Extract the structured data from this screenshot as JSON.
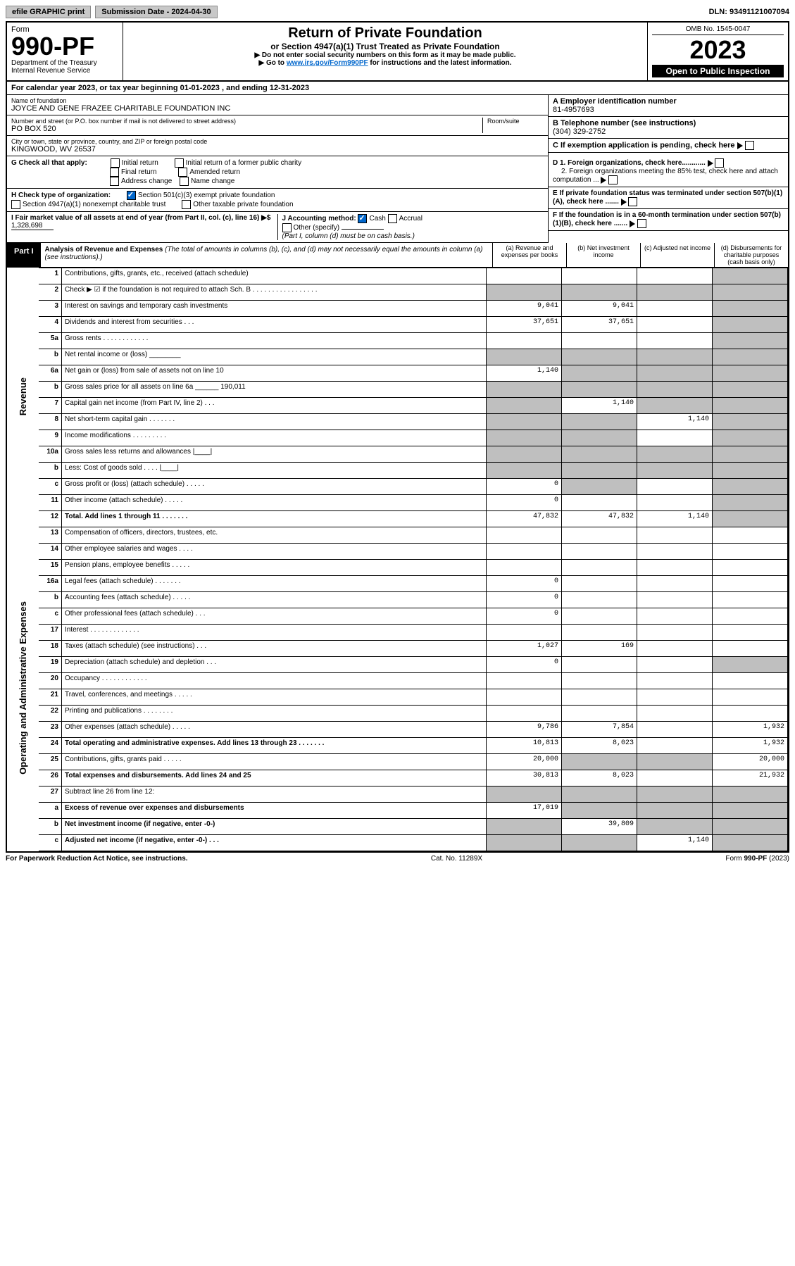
{
  "topbar": {
    "efile": "efile GRAPHIC print",
    "submission_label": "Submission Date - 2024-04-30",
    "dln": "DLN: 93491121007094"
  },
  "header": {
    "form_word": "Form",
    "form_number": "990-PF",
    "dept": "Department of the Treasury",
    "irs": "Internal Revenue Service",
    "title": "Return of Private Foundation",
    "subtitle": "or Section 4947(a)(1) Trust Treated as Private Foundation",
    "instr1": "▶ Do not enter social security numbers on this form as it may be made public.",
    "instr2_pre": "▶ Go to ",
    "instr2_link": "www.irs.gov/Form990PF",
    "instr2_post": " for instructions and the latest information.",
    "omb": "OMB No. 1545-0047",
    "year": "2023",
    "open": "Open to Public Inspection"
  },
  "calendar": {
    "text_pre": "For calendar year 2023, or tax year beginning ",
    "begin": "01-01-2023",
    "text_mid": " , and ending ",
    "end": "12-31-2023"
  },
  "entity": {
    "name_label": "Name of foundation",
    "name": "JOYCE AND GENE FRAZEE CHARITABLE FOUNDATION INC",
    "addr_label": "Number and street (or P.O. box number if mail is not delivered to street address)",
    "room_label": "Room/suite",
    "addr": "PO BOX 520",
    "city_label": "City or town, state or province, country, and ZIP or foreign postal code",
    "city": "KINGWOOD, WV  26537",
    "ein_label": "A Employer identification number",
    "ein": "81-4957693",
    "phone_label": "B Telephone number (see instructions)",
    "phone": "(304) 329-2752",
    "c_label": "C If exemption application is pending, check here"
  },
  "checks": {
    "g_label": "G Check all that apply:",
    "g_opts": [
      "Initial return",
      "Initial return of a former public charity",
      "Final return",
      "Amended return",
      "Address change",
      "Name change"
    ],
    "h_label": "H Check type of organization:",
    "h1": "Section 501(c)(3) exempt private foundation",
    "h2": "Section 4947(a)(1) nonexempt charitable trust",
    "h3": "Other taxable private foundation",
    "i_label": "I Fair market value of all assets at end of year (from Part II, col. (c), line 16) ▶$ ",
    "i_val": "1,328,698",
    "j_label": "J Accounting method:",
    "j_cash": "Cash",
    "j_accrual": "Accrual",
    "j_other": "Other (specify)",
    "j_note": "(Part I, column (d) must be on cash basis.)",
    "d1": "D 1. Foreign organizations, check here............",
    "d2": "2. Foreign organizations meeting the 85% test, check here and attach computation ...",
    "e": "E  If private foundation status was terminated under section 507(b)(1)(A), check here .......",
    "f": "F  If the foundation is in a 60-month termination under section 507(b)(1)(B), check here ......."
  },
  "part1": {
    "label": "Part I",
    "title": "Analysis of Revenue and Expenses",
    "title_note": " (The total of amounts in columns (b), (c), and (d) may not necessarily equal the amounts in column (a) (see instructions).)",
    "cols": {
      "a": "(a) Revenue and expenses per books",
      "b": "(b) Net investment income",
      "c": "(c) Adjusted net income",
      "d": "(d) Disbursements for charitable purposes (cash basis only)"
    }
  },
  "sections": {
    "rev": "Revenue",
    "exp": "Operating and Administrative Expenses"
  },
  "rows": [
    {
      "n": "1",
      "t": "Contributions, gifts, grants, etc., received (attach schedule)",
      "a": "",
      "b": "",
      "c": "",
      "d": "s"
    },
    {
      "n": "2",
      "t": "Check ▶ ☑ if the foundation is not required to attach Sch. B  . . . . . . . . . . . . . . . . .",
      "a": "s",
      "b": "s",
      "c": "s",
      "d": "s"
    },
    {
      "n": "3",
      "t": "Interest on savings and temporary cash investments",
      "a": "9,041",
      "b": "9,041",
      "c": "",
      "d": "s"
    },
    {
      "n": "4",
      "t": "Dividends and interest from securities  . . .",
      "a": "37,651",
      "b": "37,651",
      "c": "",
      "d": "s"
    },
    {
      "n": "5a",
      "t": "Gross rents  . . . . . . . . . . . .",
      "a": "",
      "b": "",
      "c": "",
      "d": "s"
    },
    {
      "n": "b",
      "t": "Net rental income or (loss) ________",
      "a": "s",
      "b": "s",
      "c": "s",
      "d": "s"
    },
    {
      "n": "6a",
      "t": "Net gain or (loss) from sale of assets not on line 10",
      "a": "1,140",
      "b": "s",
      "c": "s",
      "d": "s"
    },
    {
      "n": "b",
      "t": "Gross sales price for all assets on line 6a ______ 190,011",
      "a": "s",
      "b": "s",
      "c": "s",
      "d": "s"
    },
    {
      "n": "7",
      "t": "Capital gain net income (from Part IV, line 2)  . . .",
      "a": "s",
      "b": "1,140",
      "c": "s",
      "d": "s"
    },
    {
      "n": "8",
      "t": "Net short-term capital gain  . . . . . . .",
      "a": "s",
      "b": "s",
      "c": "1,140",
      "d": "s"
    },
    {
      "n": "9",
      "t": "Income modifications . . . . . . . . .",
      "a": "s",
      "b": "s",
      "c": "",
      "d": "s"
    },
    {
      "n": "10a",
      "t": "Gross sales less returns and allowances  |____|",
      "a": "s",
      "b": "s",
      "c": "s",
      "d": "s"
    },
    {
      "n": "b",
      "t": "Less: Cost of goods sold  . . . .  |____|",
      "a": "s",
      "b": "s",
      "c": "s",
      "d": "s"
    },
    {
      "n": "c",
      "t": "Gross profit or (loss) (attach schedule)  . . . . .",
      "a": "0",
      "b": "s",
      "c": "",
      "d": "s"
    },
    {
      "n": "11",
      "t": "Other income (attach schedule)  . . . . .",
      "a": "0",
      "b": "",
      "c": "",
      "d": "s"
    },
    {
      "n": "12",
      "t": "Total. Add lines 1 through 11  . . . . . . .",
      "a": "47,832",
      "b": "47,832",
      "c": "1,140",
      "d": "s",
      "bold": true
    },
    {
      "n": "13",
      "t": "Compensation of officers, directors, trustees, etc.",
      "a": "",
      "b": "",
      "c": "",
      "d": ""
    },
    {
      "n": "14",
      "t": "Other employee salaries and wages  . . . .",
      "a": "",
      "b": "",
      "c": "",
      "d": ""
    },
    {
      "n": "15",
      "t": "Pension plans, employee benefits . . . . .",
      "a": "",
      "b": "",
      "c": "",
      "d": ""
    },
    {
      "n": "16a",
      "t": "Legal fees (attach schedule) . . . . . . .",
      "a": "0",
      "b": "",
      "c": "",
      "d": ""
    },
    {
      "n": "b",
      "t": "Accounting fees (attach schedule) . . . . .",
      "a": "0",
      "b": "",
      "c": "",
      "d": ""
    },
    {
      "n": "c",
      "t": "Other professional fees (attach schedule)  . . .",
      "a": "0",
      "b": "",
      "c": "",
      "d": ""
    },
    {
      "n": "17",
      "t": "Interest . . . . . . . . . . . . .",
      "a": "",
      "b": "",
      "c": "",
      "d": ""
    },
    {
      "n": "18",
      "t": "Taxes (attach schedule) (see instructions)  . . .",
      "a": "1,027",
      "b": "169",
      "c": "",
      "d": ""
    },
    {
      "n": "19",
      "t": "Depreciation (attach schedule) and depletion  . . .",
      "a": "0",
      "b": "",
      "c": "",
      "d": "s"
    },
    {
      "n": "20",
      "t": "Occupancy . . . . . . . . . . . .",
      "a": "",
      "b": "",
      "c": "",
      "d": ""
    },
    {
      "n": "21",
      "t": "Travel, conferences, and meetings . . . . .",
      "a": "",
      "b": "",
      "c": "",
      "d": ""
    },
    {
      "n": "22",
      "t": "Printing and publications . . . . . . . .",
      "a": "",
      "b": "",
      "c": "",
      "d": ""
    },
    {
      "n": "23",
      "t": "Other expenses (attach schedule) . . . . .",
      "a": "9,786",
      "b": "7,854",
      "c": "",
      "d": "1,932"
    },
    {
      "n": "24",
      "t": "Total operating and administrative expenses. Add lines 13 through 23  . . . . . . .",
      "a": "10,813",
      "b": "8,023",
      "c": "",
      "d": "1,932",
      "bold": true
    },
    {
      "n": "25",
      "t": "Contributions, gifts, grants paid  . . . . .",
      "a": "20,000",
      "b": "s",
      "c": "s",
      "d": "20,000"
    },
    {
      "n": "26",
      "t": "Total expenses and disbursements. Add lines 24 and 25",
      "a": "30,813",
      "b": "8,023",
      "c": "",
      "d": "21,932",
      "bold": true
    },
    {
      "n": "27",
      "t": "Subtract line 26 from line 12:",
      "a": "s",
      "b": "s",
      "c": "s",
      "d": "s"
    },
    {
      "n": "a",
      "t": "Excess of revenue over expenses and disbursements",
      "a": "17,019",
      "b": "s",
      "c": "s",
      "d": "s",
      "bold": true
    },
    {
      "n": "b",
      "t": "Net investment income (if negative, enter -0-)",
      "a": "s",
      "b": "39,809",
      "c": "s",
      "d": "s",
      "bold": true
    },
    {
      "n": "c",
      "t": "Adjusted net income (if negative, enter -0-)  . . .",
      "a": "s",
      "b": "s",
      "c": "1,140",
      "d": "s",
      "bold": true
    }
  ],
  "footer": {
    "left": "For Paperwork Reduction Act Notice, see instructions.",
    "mid": "Cat. No. 11289X",
    "right": "Form 990-PF (2023)"
  }
}
